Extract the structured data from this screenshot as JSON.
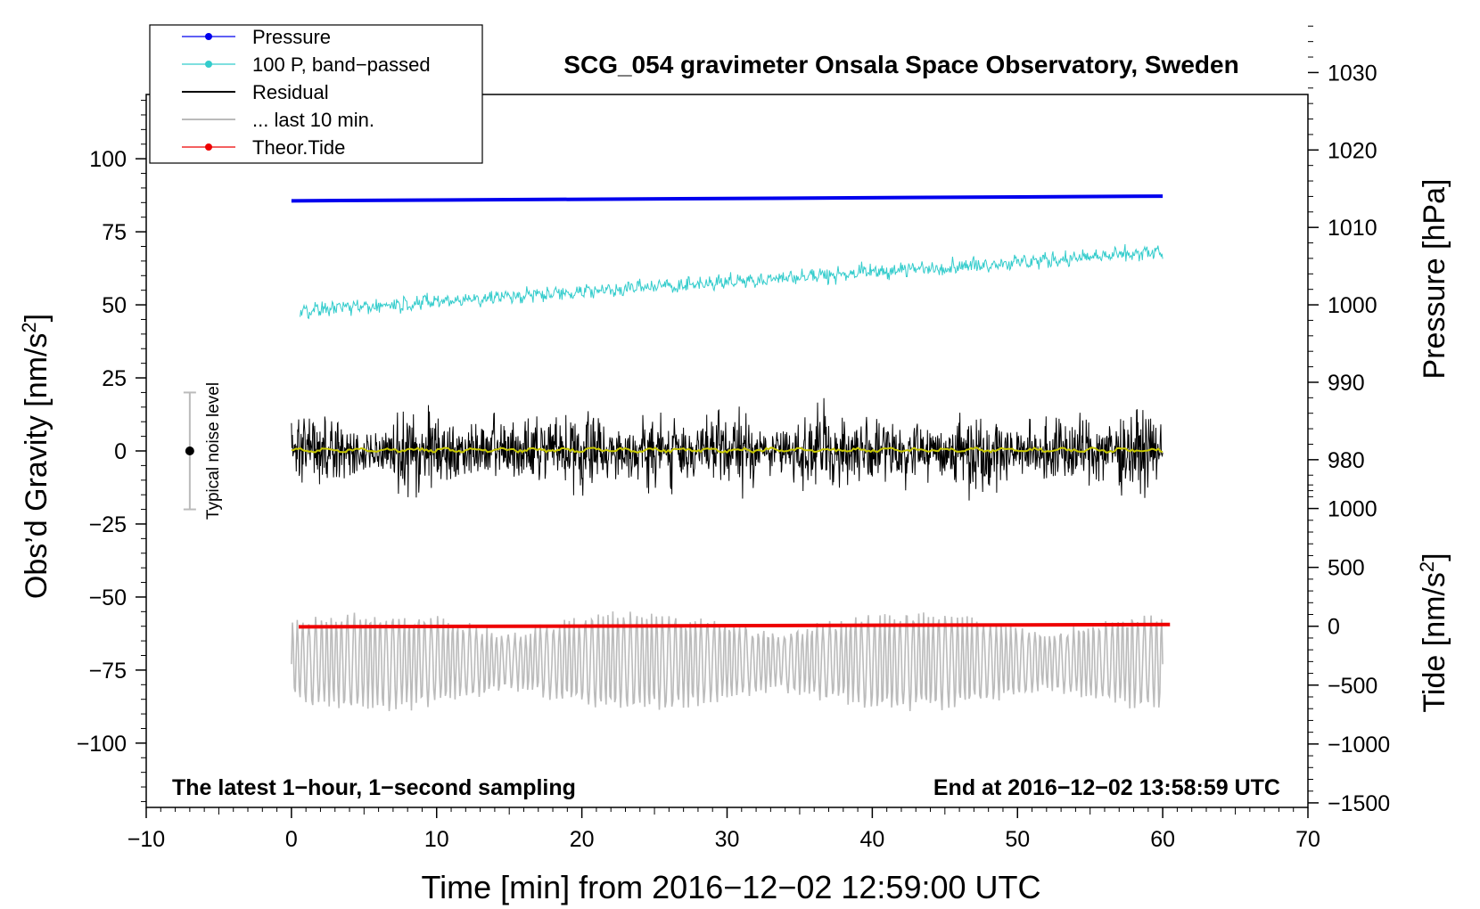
{
  "chart_data": {
    "type": "line",
    "title": "SCG_054 gravimeter Onsala Space Observatory, Sweden",
    "xlabel": "Time [min] from 2016−12−02 12:59:00 UTC",
    "ylabel_main": "Obs’d Gravity [nm/s",
    "ylabel_main_sup": "2",
    "ylabel_main_close": "]",
    "ylabel_pressure": "Pressure [hPa]",
    "ylabel_tide": "Tide [nm/s",
    "ylabel_tide_sup": "2",
    "ylabel_tide_close": "]",
    "xlim": [
      -10,
      70
    ],
    "ylim": [
      -122,
      122
    ],
    "x_ticks": [
      -10,
      0,
      10,
      20,
      30,
      40,
      50,
      60,
      70
    ],
    "x_tick_labels": [
      "−10",
      "0",
      "10",
      "20",
      "30",
      "40",
      "50",
      "60",
      "70"
    ],
    "y_ticks": [
      100,
      75,
      50,
      25,
      0,
      -25,
      -50,
      -75,
      -100
    ],
    "y_tick_labels": [
      "100",
      "75",
      "50",
      "25",
      "0",
      "−25",
      "−50",
      "−75",
      "−100"
    ],
    "pressure_axis": {
      "ticks": [
        1030,
        1020,
        1010,
        1000,
        990,
        980
      ],
      "tick_labels": [
        "1030",
        "1020",
        "1010",
        "1000",
        "990",
        "980"
      ],
      "to_main": {
        "p0": 1000,
        "y0": 50,
        "per_hpa": 2.65
      }
    },
    "tide_axis": {
      "ticks": [
        1000,
        500,
        0,
        -500,
        -1000,
        -1500
      ],
      "tick_labels": [
        "1000",
        "500",
        "0",
        "−500",
        "−1000",
        "−1500"
      ],
      "to_main": {
        "t0": 0,
        "y0": -60,
        "per_unit": 0.0403
      }
    },
    "noise_indicator": {
      "x": -7,
      "center": 0,
      "low": -20,
      "high": 20,
      "label": "Typical noise level"
    },
    "annotation_left": "The latest 1−hour, 1−second sampling",
    "annotation_right": "End at 2016−12−02 13:58:59 UTC",
    "legend": [
      {
        "name": "Pressure",
        "color": "#0000ee",
        "marker": true
      },
      {
        "name": "100 P, band−passed",
        "color": "#33cccc",
        "marker": true
      },
      {
        "name": "Residual",
        "color": "#000000",
        "marker": false
      },
      {
        "name": "... last 10 min.",
        "color": "#bbbbbb",
        "marker": false
      },
      {
        "name": "Theor.Tide",
        "color": "#ee0000",
        "marker": true
      }
    ],
    "series": [
      {
        "name": "Pressure",
        "color": "#0000ee",
        "x_range": [
          0,
          60
        ],
        "start": 85.6,
        "end": 87.2
      },
      {
        "name": "100 P, band−passed",
        "color": "#33cccc",
        "x_range": [
          0.6,
          60
        ],
        "start": 48,
        "end": 68,
        "amplitude": 5
      },
      {
        "name": "Residual",
        "color": "#000000",
        "x_range": [
          0,
          60
        ],
        "center": 0,
        "amplitude": 20
      },
      {
        "name": "Residual smoothed",
        "color": "#c8c800",
        "x_range": [
          0,
          60
        ],
        "center": 0.3
      },
      {
        "name": "... last 10 min.",
        "color": "#bbbbbb",
        "x_range": [
          0,
          60
        ],
        "center": -72,
        "amplitude": 16
      },
      {
        "name": "Theor.Tide",
        "color": "#ee0000",
        "x_range": [
          0.5,
          60.5
        ],
        "start": -60.2,
        "end": -59.4
      }
    ]
  }
}
